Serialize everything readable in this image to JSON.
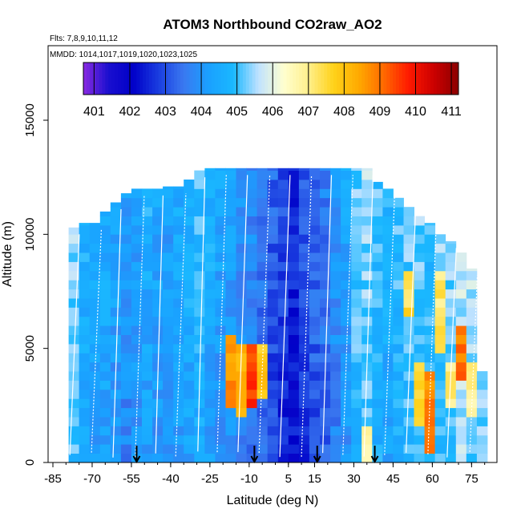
{
  "chart_data": {
    "type": "heatmap",
    "title": "ATOM3 Northbound CO2raw_AO2",
    "subtitle_flights": "Flts: 7,8,9,10,11,12",
    "subtitle_dates": "MMDD: 1014,1017,1019,1020,1023,1025",
    "xlabel": "Latitude (deg N)",
    "ylabel": "Altitude (m)",
    "xlim": [
      -85,
      85
    ],
    "ylim": [
      0,
      17500
    ],
    "x_ticks": [
      -85,
      -70,
      -55,
      -40,
      -25,
      -10,
      5,
      15,
      30,
      45,
      60,
      75
    ],
    "x_tick_labels": [
      "-85",
      "-70",
      "-55",
      "-40",
      "-25",
      "-10",
      "5",
      "15",
      "30",
      "45",
      "60",
      "75"
    ],
    "y_ticks": [
      0,
      5000,
      10000,
      15000
    ],
    "y_tick_labels": [
      "0",
      "5000",
      "10000",
      "15000"
    ],
    "colorbar": {
      "min": 400.7,
      "max": 411.2,
      "ticks": [
        401,
        402,
        403,
        404,
        405,
        406,
        407,
        408,
        409,
        410,
        411
      ],
      "tick_labels": [
        "401",
        "402",
        "403",
        "404",
        "405",
        "406",
        "407",
        "408",
        "409",
        "410",
        "411"
      ],
      "colors": [
        "#8a2be2",
        "#1a0fcf",
        "#0000c8",
        "#1a3de0",
        "#3a78f0",
        "#1aa0ff",
        "#1ab8ff",
        "#bfe2ff",
        "#ffffd0",
        "#ffef8c",
        "#ffd21a",
        "#ffaa00",
        "#ff6a00",
        "#ff1a00",
        "#cc0000",
        "#8b0000"
      ]
    },
    "flight_markers_latitude": [
      -53,
      -8,
      16,
      38
    ],
    "columns": [
      {
        "lat": -77,
        "top": 10300,
        "base": 405,
        "event": null
      },
      {
        "lat": -73,
        "top": 10500,
        "base": 404.3,
        "event": null
      },
      {
        "lat": -69,
        "top": 10500,
        "base": 404.1,
        "event": null
      },
      {
        "lat": -65,
        "top": 11000,
        "base": 404.2,
        "event": null
      },
      {
        "lat": -61,
        "top": 11400,
        "base": 404.0,
        "event": null
      },
      {
        "lat": -57,
        "top": 11800,
        "base": 403.7,
        "event": null
      },
      {
        "lat": -53,
        "top": 12000,
        "base": 403.9,
        "event": null
      },
      {
        "lat": -49,
        "top": 12000,
        "base": 404.2,
        "event": null
      },
      {
        "lat": -45,
        "top": 12000,
        "base": 404.0,
        "event": null
      },
      {
        "lat": -41,
        "top": 12100,
        "base": 403.8,
        "event": null
      },
      {
        "lat": -37,
        "top": 12100,
        "base": 404.1,
        "event": null
      },
      {
        "lat": -33,
        "top": 12400,
        "base": 404.3,
        "event": null
      },
      {
        "lat": -29,
        "top": 12800,
        "base": 404.5,
        "event": null
      },
      {
        "lat": -25,
        "top": 12900,
        "base": 404.2,
        "event": null
      },
      {
        "lat": -21,
        "top": 12900,
        "base": 404.0,
        "event": null
      },
      {
        "lat": -17,
        "top": 12900,
        "base": 403.9,
        "event": [
          2500,
          5500,
          408.6
        ]
      },
      {
        "lat": -13,
        "top": 12900,
        "base": 403.6,
        "event": [
          2000,
          5000,
          408.3
        ]
      },
      {
        "lat": -9,
        "top": 12900,
        "base": 403.4,
        "event": [
          2500,
          5200,
          409.6
        ]
      },
      {
        "lat": -5,
        "top": 12900,
        "base": 403.2,
        "event": [
          3000,
          5000,
          407.8
        ]
      },
      {
        "lat": -1,
        "top": 12900,
        "base": 402.8,
        "event": null
      },
      {
        "lat": 3,
        "top": 12900,
        "base": 402.5,
        "event": null
      },
      {
        "lat": 7,
        "top": 12900,
        "base": 402.2,
        "event": null
      },
      {
        "lat": 11,
        "top": 12900,
        "base": 402.6,
        "event": null
      },
      {
        "lat": 15,
        "top": 12900,
        "base": 403.0,
        "event": null
      },
      {
        "lat": 19,
        "top": 12900,
        "base": 403.2,
        "event": null
      },
      {
        "lat": 23,
        "top": 12900,
        "base": 403.6,
        "event": null
      },
      {
        "lat": 27,
        "top": 12900,
        "base": 404.0,
        "event": null
      },
      {
        "lat": 31,
        "top": 12900,
        "base": 404.8,
        "event": null
      },
      {
        "lat": 35,
        "top": 12900,
        "base": 405.0,
        "event": [
          0,
          1500,
          406.8
        ]
      },
      {
        "lat": 39,
        "top": 12300,
        "base": 404.6,
        "event": null
      },
      {
        "lat": 43,
        "top": 12000,
        "base": 404.3,
        "event": null
      },
      {
        "lat": 47,
        "top": 11600,
        "base": 404.6,
        "event": null
      },
      {
        "lat": 51,
        "top": 11200,
        "base": 404.8,
        "event": [
          6500,
          8500,
          407.5
        ]
      },
      {
        "lat": 55,
        "top": 10800,
        "base": 404.9,
        "event": [
          1500,
          4500,
          407.4
        ]
      },
      {
        "lat": 59,
        "top": 10500,
        "base": 404.6,
        "event": [
          500,
          3800,
          408.7
        ]
      },
      {
        "lat": 63,
        "top": 10000,
        "base": 404.9,
        "event": [
          5000,
          8500,
          407.2
        ]
      },
      {
        "lat": 67,
        "top": 9700,
        "base": 405.0,
        "event": [
          2500,
          4500,
          407.0
        ]
      },
      {
        "lat": 71,
        "top": 9200,
        "base": 405.4,
        "event": [
          3500,
          6000,
          409.0
        ]
      },
      {
        "lat": 75,
        "top": 8500,
        "base": 405.3,
        "event": [
          2000,
          4500,
          406.8
        ]
      },
      {
        "lat": 79,
        "top": 4000,
        "base": 405.2,
        "event": null
      }
    ]
  }
}
